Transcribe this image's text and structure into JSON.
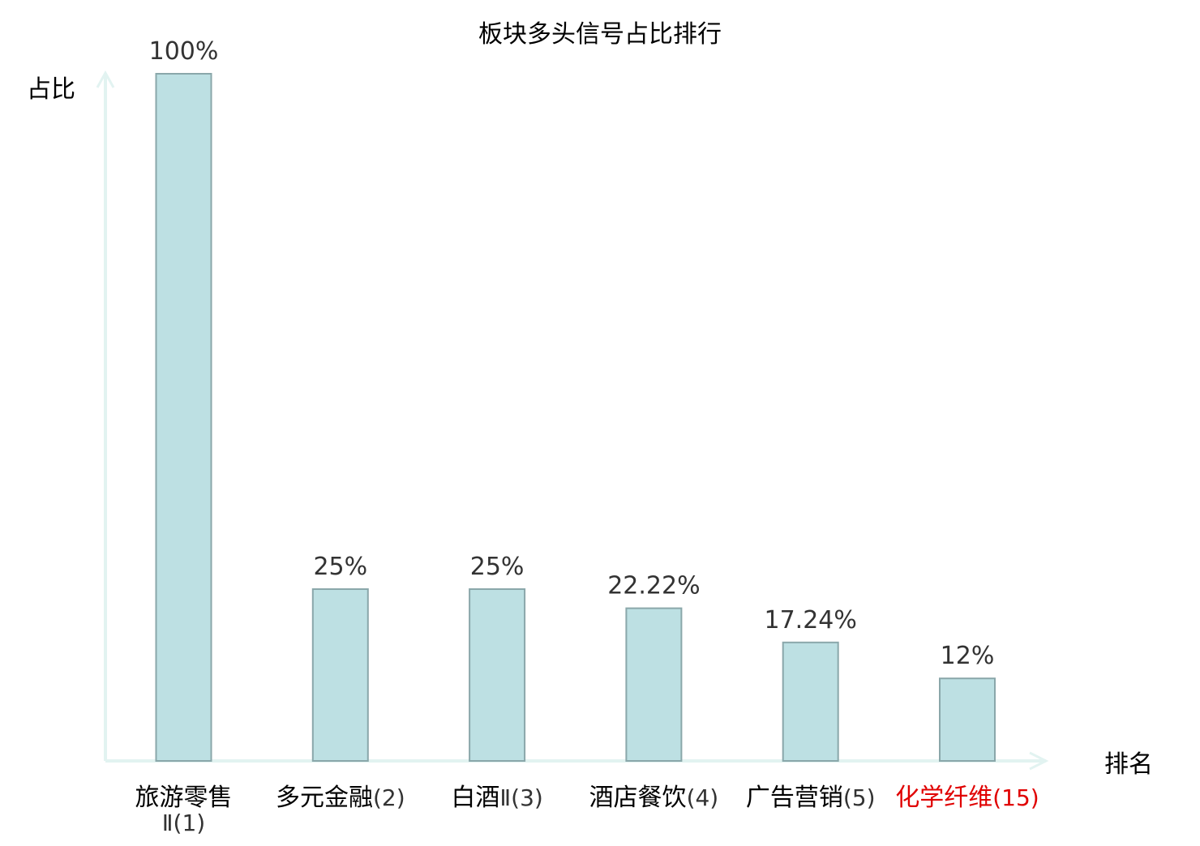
{
  "chart_data": {
    "type": "bar",
    "title": "板块多头信号占比排行",
    "xlabel": "排名",
    "ylabel": "占比",
    "categories": [
      "旅游零售Ⅱ(1)",
      "多元金融(2)",
      "白酒Ⅱ(3)",
      "酒店餐饮(4)",
      "广告营销(5)",
      "化学纤维(15)"
    ],
    "category_labels": [
      {
        "name": "旅游零售",
        "rank": "Ⅱ(1)",
        "highlight": false
      },
      {
        "name": "多元金融",
        "rank": "(2)",
        "highlight": false
      },
      {
        "name": "白酒",
        "rank": "Ⅱ(3)",
        "highlight": false
      },
      {
        "name": "酒店餐饮",
        "rank": "(4)",
        "highlight": false
      },
      {
        "name": "广告营销",
        "rank": "(5)",
        "highlight": false
      },
      {
        "name": "化学纤维",
        "rank": "(15)",
        "highlight": true
      }
    ],
    "values": [
      100,
      25,
      25,
      22.22,
      17.24,
      12
    ],
    "value_labels": [
      "100%",
      "25%",
      "25%",
      "22.22%",
      "17.24%",
      "12%"
    ],
    "ylim": [
      0,
      100
    ],
    "grid": false,
    "legend": "none",
    "colors": {
      "bar_fill": "#bde0e3",
      "bar_stroke": "#8aa7aa",
      "axis": "#e2f3f1",
      "text": "#333333",
      "label_text": "#000000",
      "highlight": "#e00000"
    }
  }
}
